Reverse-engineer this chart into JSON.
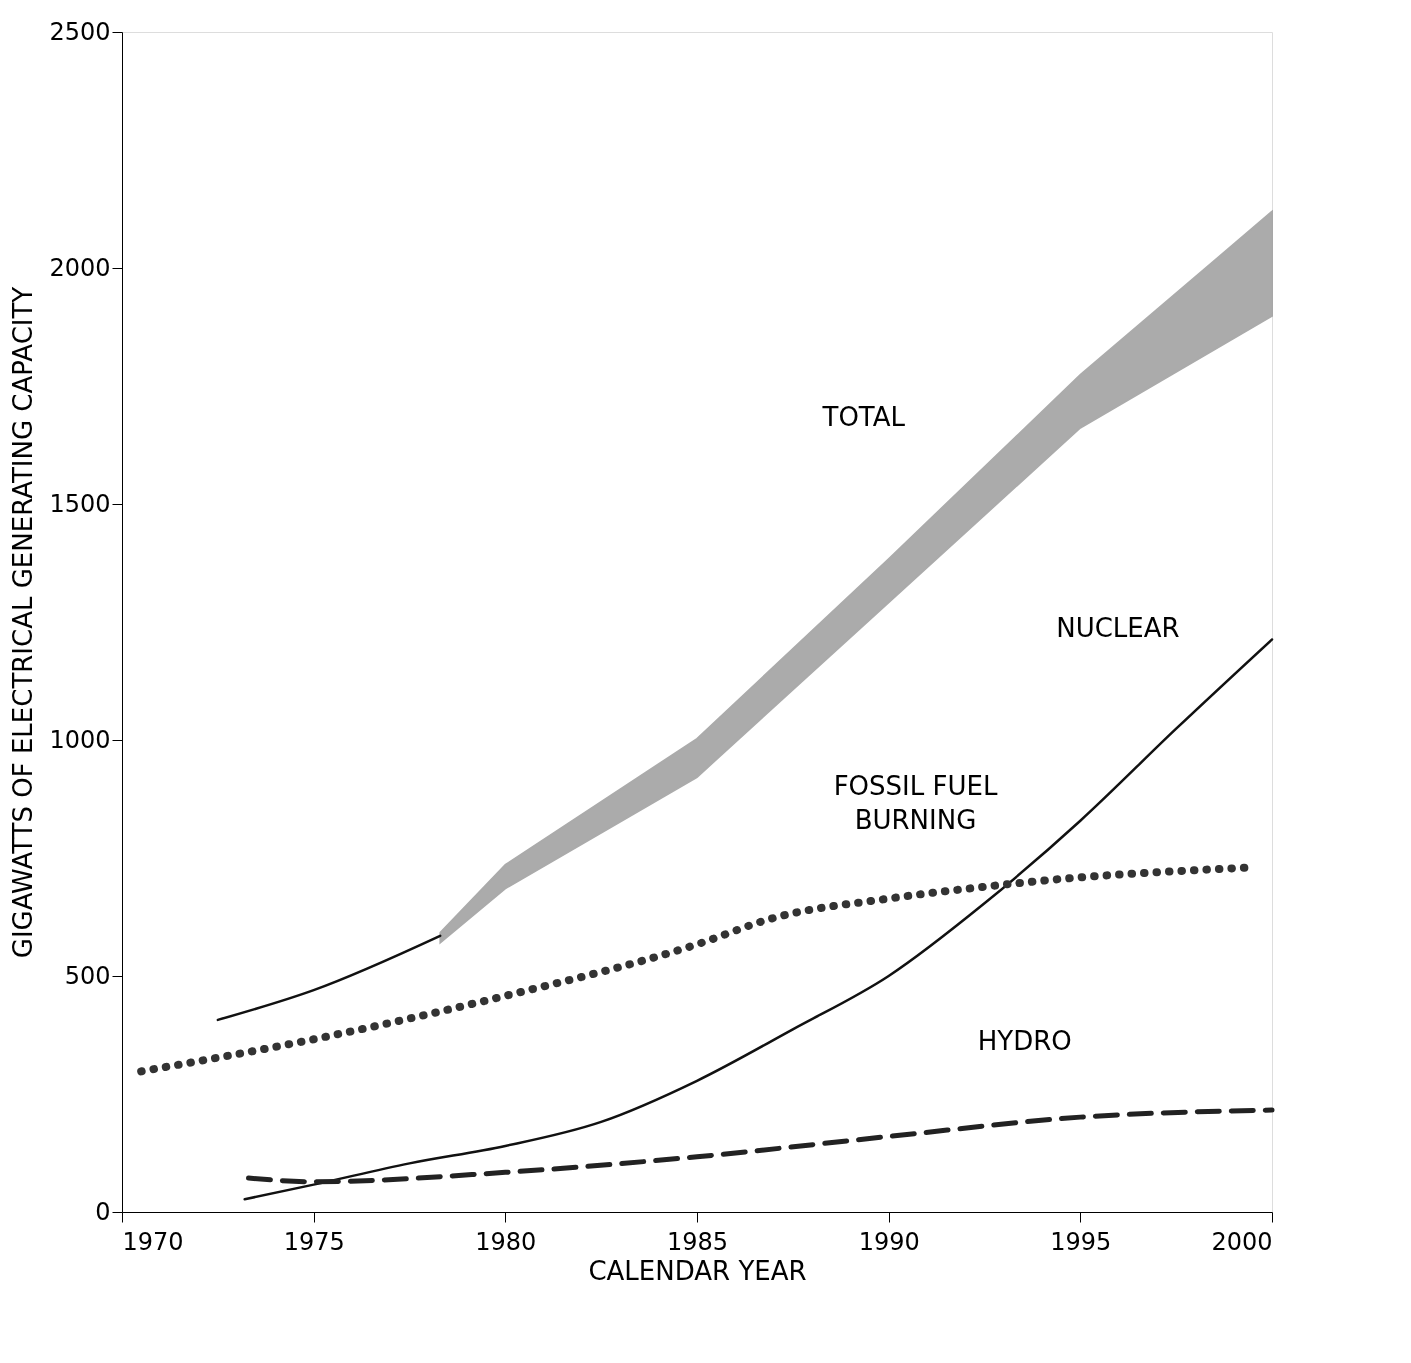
{
  "chart_data": {
    "type": "line",
    "xlabel": "CALENDAR YEAR",
    "ylabel": "GIGAWATTS OF ELECTRICAL GENERATING CAPACITY",
    "xlim": [
      1970,
      2000
    ],
    "ylim": [
      0,
      2500
    ],
    "xticks": [
      1970,
      1975,
      1980,
      1985,
      1990,
      1995,
      2000
    ],
    "yticks": [
      0,
      500,
      1000,
      1500,
      2000,
      2500
    ],
    "grid": false,
    "series": [
      {
        "color": "#111111",
        "line_style": "solid",
        "x": [
          1972.5,
          1975,
          1978.3,
          1980,
          1985,
          1990,
          1995,
          2000
        ],
        "values": [
          407,
          470,
          585,
          null,
          null,
          null,
          null,
          null
        ],
        "lower": [
          null,
          null,
          570,
          685,
          921,
          1291,
          1661,
          1898
        ],
        "upper": [
          null,
          null,
          592,
          736,
          1003,
          1384,
          1774,
          2120
        ]
      },
      {
        "color": "#111111",
        "line_style": "solid",
        "x": [
          1973.2,
          1975,
          1977.5,
          1980,
          1982.5,
          1985,
          1987.5,
          1990,
          1992.5,
          1995,
          1997.5,
          2000
        ],
        "values": [
          27,
          58,
          103,
          140,
          191,
          278,
          387,
          500,
          654,
          829,
          1024,
          1213
        ]
      },
      {
        "color": "#333333",
        "line_style": "dotted",
        "x": [
          1970.5,
          1975,
          1980,
          1985,
          1987,
          1990,
          1992.5,
          1995,
          1997.5,
          1999.5
        ],
        "values": [
          298,
          366,
          458,
          567,
          623,
          664,
          689,
          709,
          722,
          730
        ]
      },
      {
        "color": "#222222",
        "line_style": "dashed",
        "x": [
          1973.3,
          1975,
          1980,
          1985,
          1990,
          1995,
          2000
        ],
        "values": [
          72,
          64,
          84,
          117,
          160,
          201,
          216
        ]
      }
    ],
    "annotations": [
      "TOTAL",
      "NUCLEAR",
      "FOSSIL FUEL BURNING",
      "HYDRO"
    ]
  }
}
